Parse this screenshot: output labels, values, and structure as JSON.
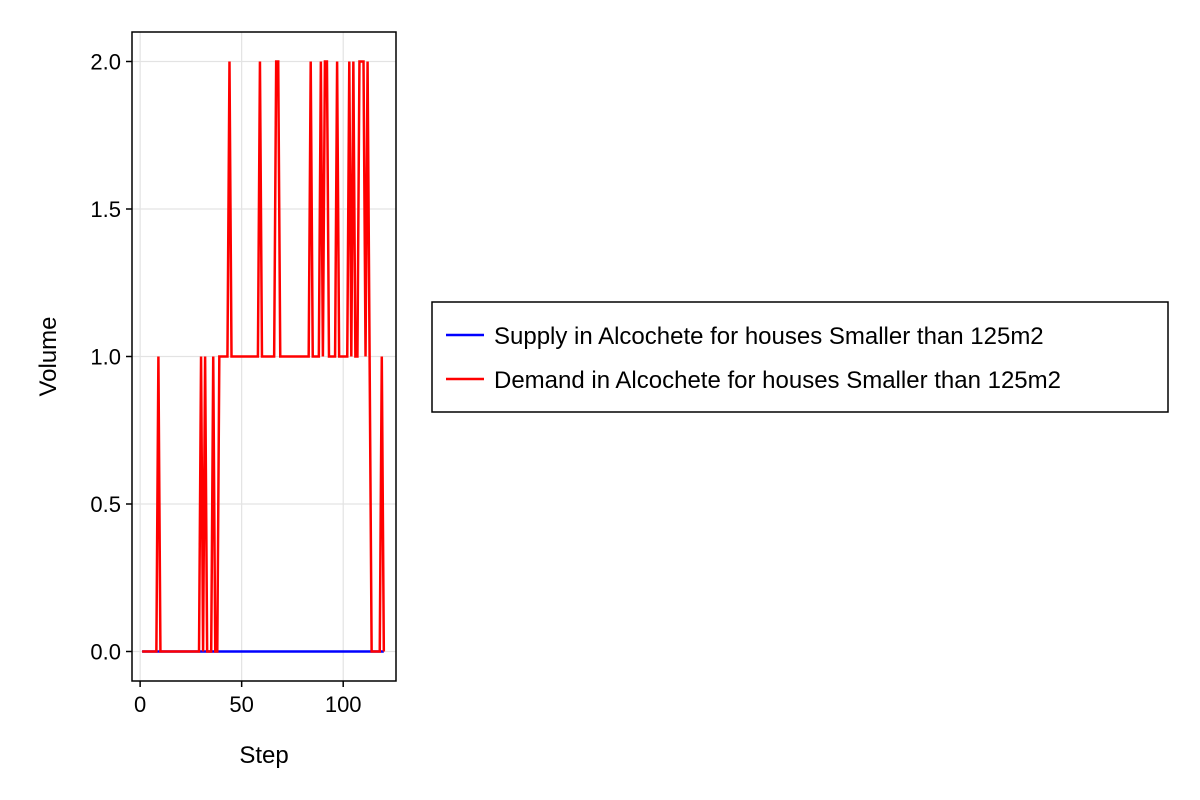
{
  "chart_data": {
    "type": "line",
    "title": "",
    "xlabel": "Step",
    "ylabel": "Volume",
    "xlim": [
      -4,
      126
    ],
    "ylim": [
      -0.1,
      2.1
    ],
    "xticks": [
      0,
      50,
      100
    ],
    "yticks": [
      0.0,
      0.5,
      1.0,
      1.5,
      2.0
    ],
    "xtick_labels": [
      "0",
      "50",
      "100"
    ],
    "ytick_labels": [
      "0.0",
      "0.5",
      "1.0",
      "1.5",
      "2.0"
    ],
    "grid": true,
    "legend_position": "right",
    "series": [
      {
        "name": "Supply in Alcochete for houses Smaller than 125m2",
        "color": "#0000ff",
        "x": [
          1,
          120
        ],
        "y": [
          0,
          0
        ]
      },
      {
        "name": "Demand in Alcochete for houses Smaller than 125m2",
        "color": "#ff0000",
        "x": [
          1,
          2,
          3,
          4,
          5,
          6,
          7,
          8,
          9,
          10,
          11,
          12,
          13,
          14,
          15,
          16,
          17,
          18,
          19,
          20,
          21,
          22,
          23,
          24,
          25,
          26,
          27,
          28,
          29,
          30,
          31,
          32,
          33,
          34,
          35,
          36,
          37,
          38,
          39,
          40,
          41,
          42,
          43,
          44,
          45,
          46,
          47,
          48,
          49,
          50,
          51,
          52,
          53,
          54,
          55,
          56,
          57,
          58,
          59,
          60,
          61,
          62,
          63,
          64,
          65,
          66,
          67,
          68,
          69,
          70,
          71,
          72,
          73,
          74,
          75,
          76,
          77,
          78,
          79,
          80,
          81,
          82,
          83,
          84,
          85,
          86,
          87,
          88,
          89,
          90,
          91,
          92,
          93,
          94,
          95,
          96,
          97,
          98,
          99,
          100,
          101,
          102,
          103,
          104,
          105,
          106,
          107,
          108,
          109,
          110,
          111,
          112,
          113,
          114,
          115,
          116,
          117,
          118,
          119,
          120
        ],
        "y": [
          0,
          0,
          0,
          0,
          0,
          0,
          0,
          0,
          1,
          0,
          0,
          0,
          0,
          0,
          0,
          0,
          0,
          0,
          0,
          0,
          0,
          0,
          0,
          0,
          0,
          0,
          0,
          0,
          0,
          1,
          0,
          1,
          0,
          0,
          0,
          1,
          0,
          0,
          1,
          1,
          1,
          1,
          1,
          2,
          1,
          1,
          1,
          1,
          1,
          1,
          1,
          1,
          1,
          1,
          1,
          1,
          1,
          1,
          2,
          1,
          1,
          1,
          1,
          1,
          1,
          1,
          2,
          2,
          1,
          1,
          1,
          1,
          1,
          1,
          1,
          1,
          1,
          1,
          1,
          1,
          1,
          1,
          1,
          2,
          1,
          1,
          1,
          1,
          2,
          1,
          2,
          2,
          1,
          1,
          1,
          1,
          2,
          1,
          1,
          1,
          1,
          1,
          2,
          1,
          2,
          1,
          1,
          2,
          2,
          2,
          1,
          2,
          1,
          0,
          0,
          0,
          0,
          0,
          1,
          0
        ]
      }
    ]
  }
}
